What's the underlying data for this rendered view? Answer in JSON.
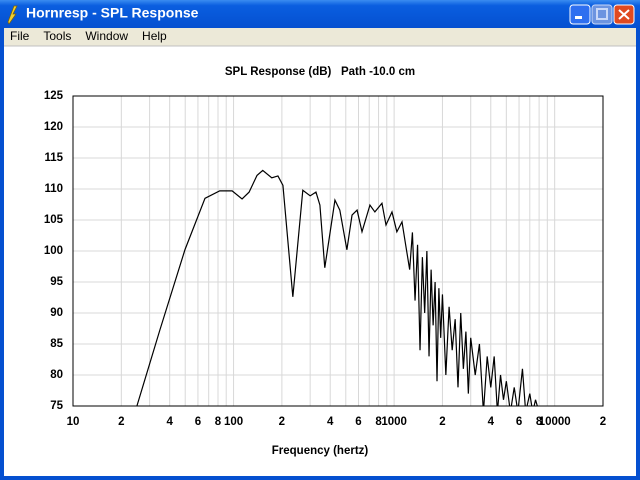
{
  "window": {
    "title": "Hornresp - SPL Response",
    "menu": [
      "File",
      "Tools",
      "Window",
      "Help"
    ]
  },
  "chart_data": {
    "type": "line",
    "title": "SPL Response (dB)   Path -10.0 cm",
    "x_label": "Frequency (hertz)",
    "log_x": true,
    "grid": true,
    "color": "#000000",
    "xlim": [
      10,
      20000
    ],
    "ylim": [
      75,
      125
    ],
    "xticks": [
      10,
      {
        "value": 20,
        "label": "2"
      },
      {
        "value": 40,
        "label": "4"
      },
      {
        "value": 60,
        "label": "6"
      },
      {
        "value": 80,
        "label": "8"
      },
      100,
      {
        "value": 200,
        "label": "2"
      },
      {
        "value": 400,
        "label": "4"
      },
      {
        "value": 600,
        "label": "6"
      },
      {
        "value": 800,
        "label": "8"
      },
      1000,
      {
        "value": 2000,
        "label": "2"
      },
      {
        "value": 4000,
        "label": "4"
      },
      {
        "value": 6000,
        "label": "6"
      },
      {
        "value": 8000,
        "label": "8"
      },
      10000,
      {
        "value": 20000,
        "label": "2"
      }
    ],
    "xminorticks": [
      30,
      50,
      70,
      90,
      300,
      500,
      700,
      900,
      3000,
      5000,
      7000,
      9000
    ],
    "yticks": [
      75,
      80,
      85,
      90,
      95,
      100,
      105,
      110,
      115,
      120,
      125
    ],
    "x": [
      25,
      34.8,
      49.8,
      66.4,
      82,
      98,
      113,
      125,
      140,
      152,
      173,
      189,
      203,
      234,
      270,
      300,
      326,
      345,
      370,
      428,
      459,
      508,
      547,
      588,
      631,
      707,
      759,
      840,
      890,
      970,
      1040,
      1120,
      1180,
      1250,
      1300,
      1350,
      1400,
      1450,
      1500,
      1550,
      1600,
      1650,
      1700,
      1750,
      1800,
      1850,
      1900,
      1950,
      2000,
      2100,
      2200,
      2300,
      2400,
      2500,
      2600,
      2700,
      2800,
      2900,
      3000,
      3200,
      3400,
      3600,
      3800,
      4000,
      4200,
      4400,
      4600,
      4800,
      5000,
      5300,
      5600,
      5900,
      6300,
      6600,
      7000,
      7300,
      7600,
      8000
    ],
    "values": [
      75,
      87.3,
      100.2,
      108.5,
      109.7,
      109.7,
      108.4,
      109.5,
      112.2,
      113,
      111.8,
      112.1,
      110.6,
      92.6,
      109.8,
      108.9,
      109.5,
      107.4,
      97.3,
      108.2,
      106.6,
      100.2,
      105.8,
      106.6,
      103.1,
      107.4,
      106.3,
      107.7,
      104.2,
      106.3,
      103.1,
      104.7,
      101,
      97,
      103,
      92,
      101,
      84,
      99,
      90,
      100,
      83,
      97,
      88,
      95,
      79,
      94,
      86,
      93,
      80,
      91,
      84,
      89,
      78,
      90,
      81,
      87,
      77,
      86,
      80,
      85,
      74,
      83,
      78,
      83,
      74,
      80,
      76,
      79,
      74,
      78,
      74,
      81,
      74,
      77,
      74,
      76,
      74
    ]
  }
}
